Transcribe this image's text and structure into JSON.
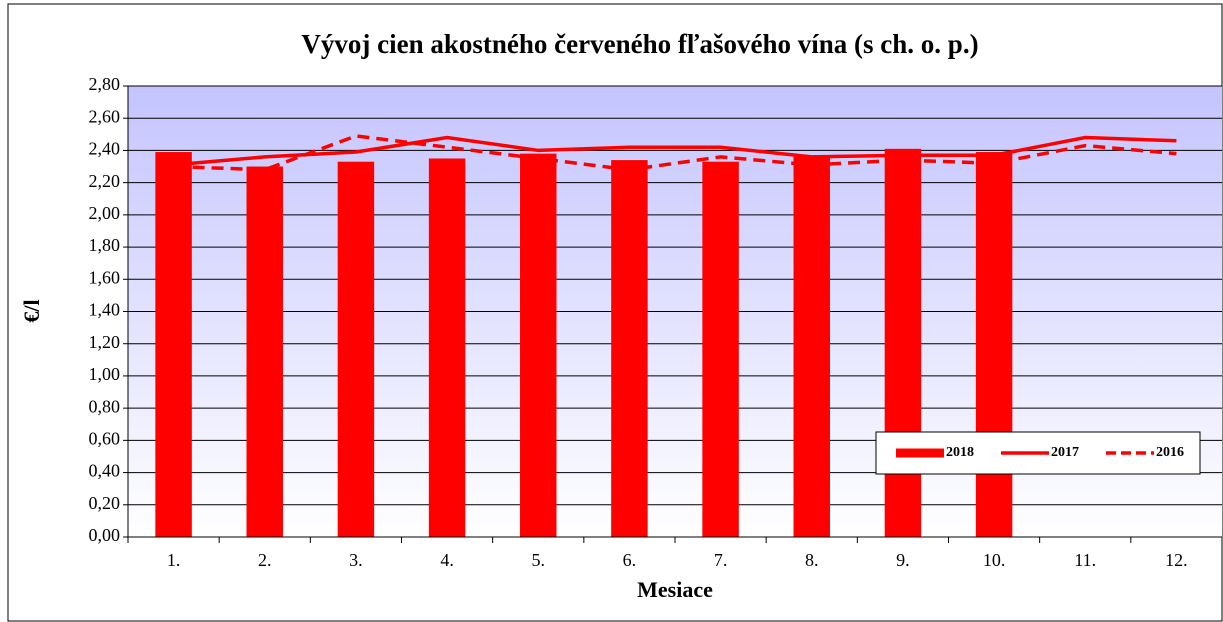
{
  "chart_data": {
    "type": "bar",
    "title": "Vývoj cien akostného červeného fľašového vína (s ch. o. p.)",
    "x_label": "Mesiace",
    "y_label": "€/l",
    "categories": [
      "1.",
      "2.",
      "3.",
      "4.",
      "5.",
      "6.",
      "7.",
      "8.",
      "9.",
      "10.",
      "11.",
      "12."
    ],
    "series": [
      {
        "name": "2018",
        "type": "bar",
        "color": "#ff0000",
        "values": [
          2.39,
          2.3,
          2.33,
          2.35,
          2.38,
          2.34,
          2.33,
          2.37,
          2.41,
          2.39,
          null,
          null
        ]
      },
      {
        "name": "2017",
        "type": "line",
        "line_style": "solid",
        "color": "#ff0000",
        "values": [
          2.31,
          2.36,
          2.39,
          2.48,
          2.4,
          2.42,
          2.42,
          2.36,
          2.37,
          2.37,
          2.48,
          2.46
        ]
      },
      {
        "name": "2016",
        "type": "line",
        "line_style": "dashed",
        "color": "#ff0000",
        "values": [
          2.3,
          2.28,
          2.49,
          2.42,
          2.35,
          2.28,
          2.36,
          2.31,
          2.34,
          2.32,
          2.43,
          2.38
        ]
      }
    ],
    "ylim": [
      0,
      2.8
    ],
    "yticks": [
      {
        "value": 0,
        "label": "0,00"
      },
      {
        "value": 0.2,
        "label": "0,20"
      },
      {
        "value": 0.4,
        "label": "0,40"
      },
      {
        "value": 0.6,
        "label": "0,60"
      },
      {
        "value": 0.8,
        "label": "0,80"
      },
      {
        "value": 1.0,
        "label": "1,00"
      },
      {
        "value": 1.2,
        "label": "1,20"
      },
      {
        "value": 1.4,
        "label": "1,40"
      },
      {
        "value": 1.6,
        "label": "1,60"
      },
      {
        "value": 1.8,
        "label": "1,80"
      },
      {
        "value": 2.0,
        "label": "2,00"
      },
      {
        "value": 2.2,
        "label": "2,20"
      },
      {
        "value": 2.4,
        "label": "2,40"
      },
      {
        "value": 2.6,
        "label": "2,60"
      },
      {
        "value": 2.8,
        "label": "2,80"
      }
    ],
    "grid": true,
    "legend_position": "lower right"
  }
}
